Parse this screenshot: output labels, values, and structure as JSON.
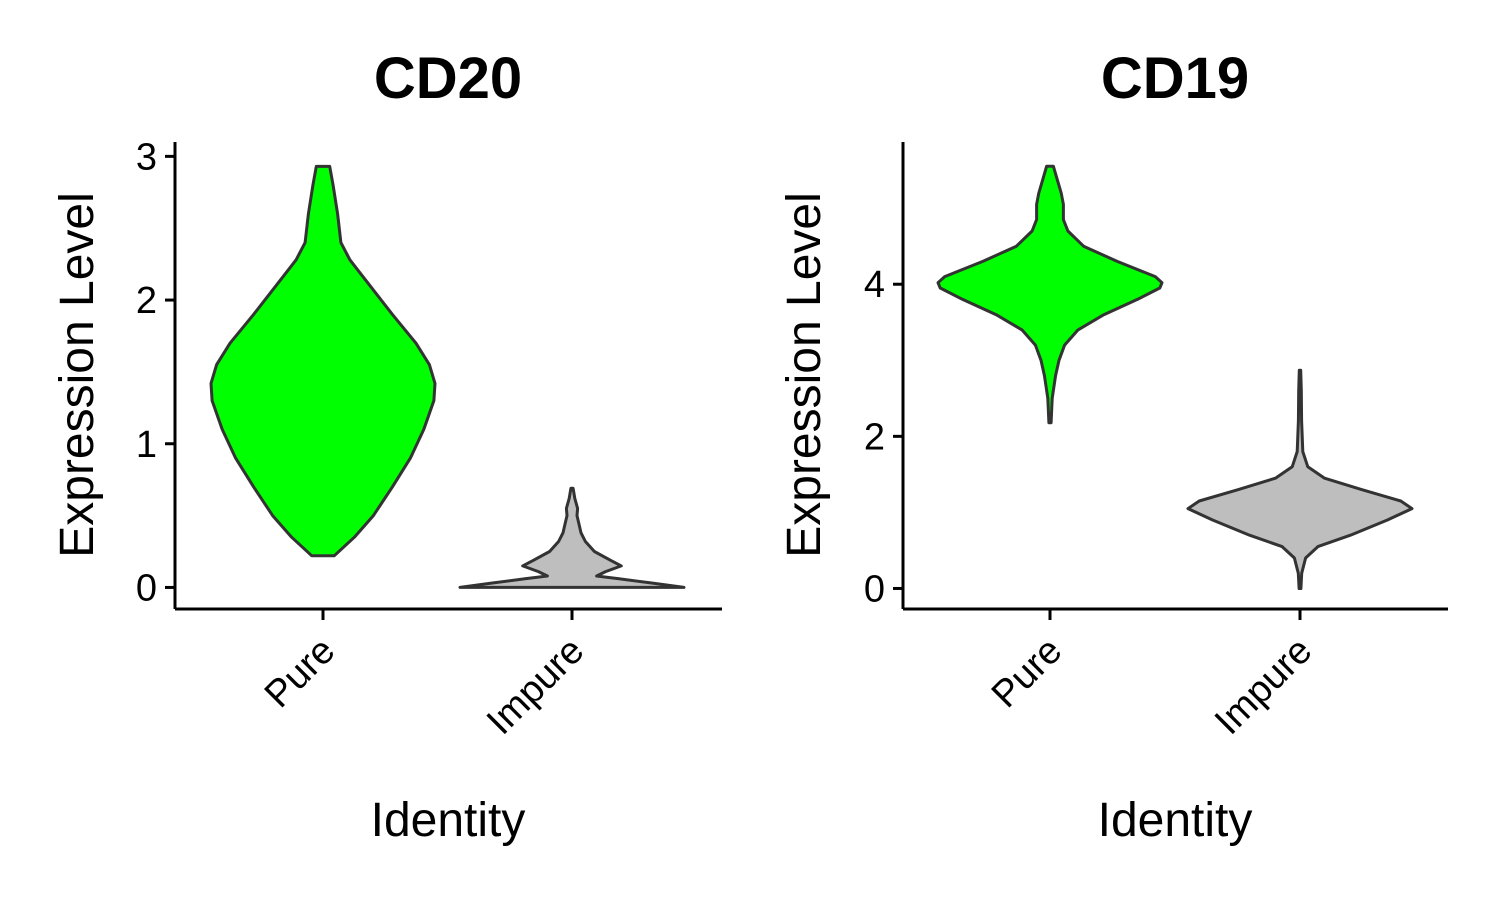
{
  "chart_data": [
    {
      "type": "violin",
      "title": "CD20",
      "xlabel": "Identity",
      "ylabel": "Expression Level",
      "categories": [
        "Pure",
        "Impure"
      ],
      "ylim": [
        -0.15,
        3.1
      ],
      "yticks": [
        0,
        1,
        2,
        3
      ],
      "colors": [
        "#00FF00",
        "#BEBEBE"
      ],
      "grid": false,
      "legend": "none",
      "violins": [
        {
          "category": "Pure",
          "fill": "#00FF00",
          "profile": [
            [
              0.22,
              0.1
            ],
            [
              0.35,
              0.28
            ],
            [
              0.5,
              0.45
            ],
            [
              0.7,
              0.62
            ],
            [
              0.9,
              0.78
            ],
            [
              1.1,
              0.9
            ],
            [
              1.3,
              0.99
            ],
            [
              1.42,
              1.0
            ],
            [
              1.55,
              0.95
            ],
            [
              1.7,
              0.83
            ],
            [
              1.9,
              0.62
            ],
            [
              2.1,
              0.42
            ],
            [
              2.2,
              0.32
            ],
            [
              2.28,
              0.24
            ],
            [
              2.4,
              0.16
            ],
            [
              2.6,
              0.13
            ],
            [
              2.8,
              0.09
            ],
            [
              2.93,
              0.06
            ]
          ]
        },
        {
          "category": "Impure",
          "fill": "#BEBEBE",
          "profile": [
            [
              0.0,
              1.0
            ],
            [
              0.03,
              0.72
            ],
            [
              0.06,
              0.42
            ],
            [
              0.08,
              0.22
            ],
            [
              0.11,
              0.3
            ],
            [
              0.15,
              0.44
            ],
            [
              0.19,
              0.34
            ],
            [
              0.25,
              0.2
            ],
            [
              0.32,
              0.12
            ],
            [
              0.38,
              0.08
            ],
            [
              0.45,
              0.06
            ],
            [
              0.5,
              0.045
            ],
            [
              0.55,
              0.05
            ],
            [
              0.62,
              0.025
            ],
            [
              0.69,
              0.01
            ]
          ]
        }
      ]
    },
    {
      "type": "violin",
      "title": "CD19",
      "xlabel": "Identity",
      "ylabel": "Expression Level",
      "categories": [
        "Pure",
        "Impure"
      ],
      "ylim": [
        -0.27,
        5.87
      ],
      "yticks": [
        0,
        2,
        4
      ],
      "colors": [
        "#00FF00",
        "#BEBEBE"
      ],
      "grid": false,
      "legend": "none",
      "violins": [
        {
          "category": "Pure",
          "fill": "#00FF00",
          "profile": [
            [
              2.18,
              0.01
            ],
            [
              2.5,
              0.02
            ],
            [
              2.8,
              0.05
            ],
            [
              3.0,
              0.08
            ],
            [
              3.2,
              0.13
            ],
            [
              3.4,
              0.25
            ],
            [
              3.6,
              0.48
            ],
            [
              3.8,
              0.78
            ],
            [
              3.95,
              0.98
            ],
            [
              4.02,
              1.0
            ],
            [
              4.1,
              0.94
            ],
            [
              4.3,
              0.6
            ],
            [
              4.5,
              0.3
            ],
            [
              4.7,
              0.16
            ],
            [
              4.85,
              0.12
            ],
            [
              5.05,
              0.12
            ],
            [
              5.2,
              0.1
            ],
            [
              5.4,
              0.06
            ],
            [
              5.55,
              0.03
            ]
          ]
        },
        {
          "category": "Impure",
          "fill": "#BEBEBE",
          "profile": [
            [
              0.0,
              0.008
            ],
            [
              0.2,
              0.015
            ],
            [
              0.4,
              0.05
            ],
            [
              0.55,
              0.16
            ],
            [
              0.7,
              0.45
            ],
            [
              0.9,
              0.78
            ],
            [
              1.05,
              1.0
            ],
            [
              1.15,
              0.9
            ],
            [
              1.3,
              0.55
            ],
            [
              1.45,
              0.22
            ],
            [
              1.6,
              0.07
            ],
            [
              1.8,
              0.025
            ],
            [
              2.2,
              0.014
            ],
            [
              2.6,
              0.012
            ],
            [
              2.87,
              0.006
            ]
          ]
        }
      ]
    }
  ]
}
